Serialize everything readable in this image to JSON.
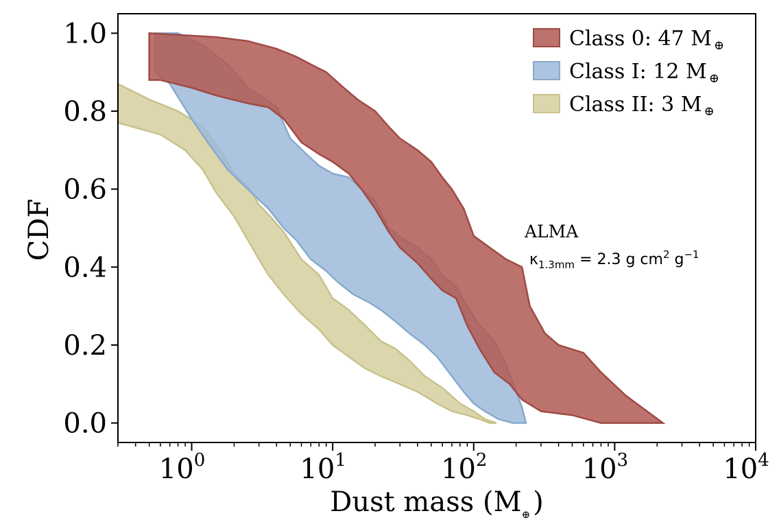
{
  "chart_data": {
    "type": "area",
    "xscale": "log",
    "xlim": [
      0.3,
      10000
    ],
    "ylim": [
      -0.05,
      1.05
    ],
    "xlabel": "Dust mass (M",
    "xlabel_symbol": "⊕",
    "xlabel_close": ")",
    "ylabel": "CDF",
    "x_ticks": [
      {
        "value": 1,
        "base": "10",
        "exp": "0"
      },
      {
        "value": 10,
        "base": "10",
        "exp": "1"
      },
      {
        "value": 100,
        "base": "10",
        "exp": "2"
      },
      {
        "value": 1000,
        "base": "10",
        "exp": "3"
      },
      {
        "value": 10000,
        "base": "10",
        "exp": "4"
      }
    ],
    "y_ticks": [
      {
        "value": 0.0,
        "label": "0.0"
      },
      {
        "value": 0.2,
        "label": "0.2"
      },
      {
        "value": 0.4,
        "label": "0.4"
      },
      {
        "value": 0.6,
        "label": "0.6"
      },
      {
        "value": 0.8,
        "label": "0.8"
      },
      {
        "value": 1.0,
        "label": "1.0"
      }
    ],
    "legend_position": "top-right",
    "series": [
      {
        "name": "Class II: 3 M",
        "symbol": "⊕",
        "fill": "#d6cf9f",
        "stroke": "#c9c18c",
        "upper": [
          [
            0.3,
            0.87
          ],
          [
            0.5,
            0.83
          ],
          [
            0.8,
            0.8
          ],
          [
            1.2,
            0.76
          ],
          [
            1.6,
            0.7
          ],
          [
            2,
            0.64
          ],
          [
            2.6,
            0.6
          ],
          [
            3,
            0.56
          ],
          [
            3.6,
            0.53
          ],
          [
            4.5,
            0.49
          ],
          [
            6,
            0.42
          ],
          [
            8,
            0.38
          ],
          [
            10,
            0.32
          ],
          [
            13,
            0.29
          ],
          [
            17,
            0.25
          ],
          [
            22,
            0.21
          ],
          [
            28,
            0.19
          ],
          [
            35,
            0.16
          ],
          [
            45,
            0.12
          ],
          [
            60,
            0.09
          ],
          [
            80,
            0.05
          ],
          [
            100,
            0.03
          ],
          [
            120,
            0.01
          ],
          [
            145,
            0.0
          ]
        ],
        "lower": [
          [
            0.3,
            0.77
          ],
          [
            0.6,
            0.74
          ],
          [
            0.9,
            0.7
          ],
          [
            1.2,
            0.65
          ],
          [
            1.5,
            0.59
          ],
          [
            2,
            0.53
          ],
          [
            2.5,
            0.47
          ],
          [
            3,
            0.42
          ],
          [
            3.5,
            0.38
          ],
          [
            4.5,
            0.33
          ],
          [
            6,
            0.28
          ],
          [
            8,
            0.24
          ],
          [
            10,
            0.2
          ],
          [
            13,
            0.17
          ],
          [
            17,
            0.14
          ],
          [
            22,
            0.12
          ],
          [
            30,
            0.1
          ],
          [
            40,
            0.08
          ],
          [
            55,
            0.05
          ],
          [
            70,
            0.03
          ],
          [
            90,
            0.02
          ],
          [
            110,
            0.01
          ],
          [
            130,
            0.0
          ]
        ]
      },
      {
        "name": "Class I: 12 M",
        "symbol": "⊕",
        "fill": "#9dbad9",
        "stroke": "#88aacc",
        "upper": [
          [
            0.55,
            1.0
          ],
          [
            0.8,
            1.0
          ],
          [
            1.2,
            0.97
          ],
          [
            1.8,
            0.92
          ],
          [
            2.5,
            0.86
          ],
          [
            3.4,
            0.83
          ],
          [
            4,
            0.81
          ],
          [
            5,
            0.73
          ],
          [
            6.5,
            0.69
          ],
          [
            8,
            0.66
          ],
          [
            10,
            0.64
          ],
          [
            13,
            0.63
          ],
          [
            16,
            0.6
          ],
          [
            20,
            0.57
          ],
          [
            25,
            0.5
          ],
          [
            32,
            0.47
          ],
          [
            40,
            0.45
          ],
          [
            50,
            0.42
          ],
          [
            60,
            0.38
          ],
          [
            75,
            0.35
          ],
          [
            90,
            0.3
          ],
          [
            110,
            0.25
          ],
          [
            140,
            0.21
          ],
          [
            170,
            0.15
          ],
          [
            200,
            0.08
          ],
          [
            220,
            0.04
          ],
          [
            235,
            0.0
          ]
        ],
        "lower": [
          [
            0.55,
            0.9
          ],
          [
            0.7,
            0.87
          ],
          [
            1,
            0.78
          ],
          [
            1.3,
            0.72
          ],
          [
            1.8,
            0.65
          ],
          [
            2.5,
            0.6
          ],
          [
            3.5,
            0.55
          ],
          [
            4.5,
            0.5
          ],
          [
            5.5,
            0.47
          ],
          [
            7,
            0.42
          ],
          [
            9,
            0.39
          ],
          [
            11,
            0.36
          ],
          [
            14,
            0.33
          ],
          [
            18,
            0.31
          ],
          [
            22,
            0.29
          ],
          [
            28,
            0.26
          ],
          [
            35,
            0.23
          ],
          [
            45,
            0.2
          ],
          [
            55,
            0.17
          ],
          [
            70,
            0.12
          ],
          [
            85,
            0.08
          ],
          [
            100,
            0.05
          ],
          [
            120,
            0.03
          ],
          [
            150,
            0.01
          ],
          [
            190,
            0.0
          ]
        ]
      },
      {
        "name": "Class 0: 47 M",
        "symbol": "⊕",
        "fill": "#b05a54",
        "stroke": "#a04a45",
        "upper": [
          [
            0.5,
            1.0
          ],
          [
            1.5,
            0.99
          ],
          [
            2.5,
            0.98
          ],
          [
            4,
            0.96
          ],
          [
            5.5,
            0.94
          ],
          [
            7,
            0.92
          ],
          [
            9,
            0.9
          ],
          [
            12,
            0.86
          ],
          [
            15,
            0.83
          ],
          [
            20,
            0.8
          ],
          [
            25,
            0.76
          ],
          [
            30,
            0.73
          ],
          [
            40,
            0.7
          ],
          [
            50,
            0.67
          ],
          [
            60,
            0.63
          ],
          [
            70,
            0.6
          ],
          [
            85,
            0.55
          ],
          [
            100,
            0.48
          ],
          [
            130,
            0.45
          ],
          [
            170,
            0.42
          ],
          [
            220,
            0.4
          ],
          [
            250,
            0.3
          ],
          [
            320,
            0.23
          ],
          [
            400,
            0.2
          ],
          [
            600,
            0.18
          ],
          [
            800,
            0.13
          ],
          [
            1200,
            0.07
          ],
          [
            2200,
            0.0
          ]
        ],
        "lower": [
          [
            0.5,
            0.88
          ],
          [
            0.6,
            0.88
          ],
          [
            1,
            0.86
          ],
          [
            1.5,
            0.84
          ],
          [
            2.5,
            0.82
          ],
          [
            3.5,
            0.81
          ],
          [
            4.5,
            0.78
          ],
          [
            6,
            0.72
          ],
          [
            8,
            0.69
          ],
          [
            10,
            0.67
          ],
          [
            13,
            0.64
          ],
          [
            16,
            0.6
          ],
          [
            20,
            0.55
          ],
          [
            25,
            0.49
          ],
          [
            30,
            0.45
          ],
          [
            40,
            0.41
          ],
          [
            50,
            0.37
          ],
          [
            60,
            0.34
          ],
          [
            75,
            0.32
          ],
          [
            90,
            0.25
          ],
          [
            110,
            0.19
          ],
          [
            140,
            0.13
          ],
          [
            180,
            0.1
          ],
          [
            220,
            0.06
          ],
          [
            300,
            0.03
          ],
          [
            500,
            0.02
          ],
          [
            800,
            0.0
          ],
          [
            2200,
            0.0
          ]
        ]
      }
    ],
    "annotations": {
      "telescope": "ALMA",
      "kappa_symbol": "κ",
      "kappa_sub": "1.3mm",
      "kappa_eq": " = 2.3 g cm",
      "kappa_sup1": "2",
      "kappa_mid": " g",
      "kappa_sup2": "−1"
    }
  }
}
